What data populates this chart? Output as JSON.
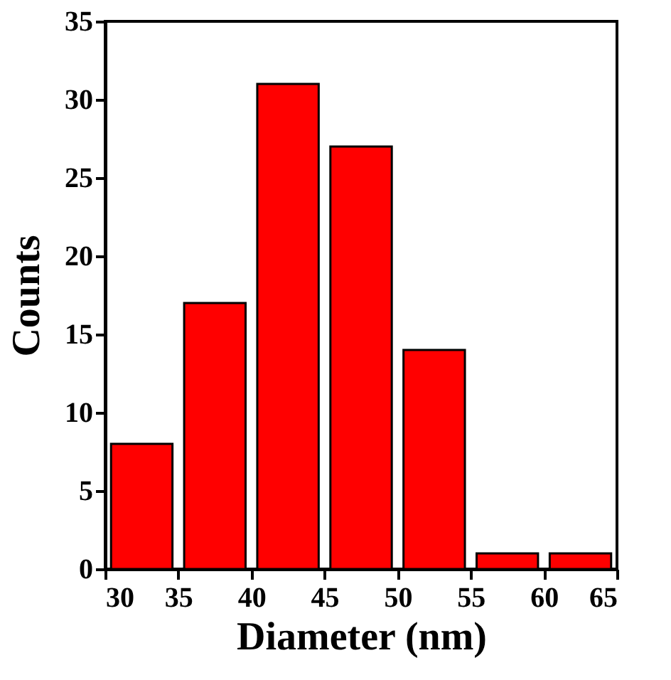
{
  "chart_data": {
    "type": "histogram",
    "bins": [
      30,
      35,
      40,
      45,
      50,
      55,
      60,
      65
    ],
    "values": [
      8,
      17,
      31,
      27,
      14,
      1,
      1
    ],
    "color": "#ff0000",
    "xlabel": "Diameter (nm)",
    "ylabel": "Counts",
    "xlim": [
      30,
      65
    ],
    "xticks": [
      30,
      35,
      40,
      45,
      50,
      55,
      60,
      65
    ],
    "ylim": [
      0,
      35
    ],
    "yticks": [
      0,
      5,
      10,
      15,
      20,
      25,
      30,
      35
    ],
    "grid": false
  }
}
